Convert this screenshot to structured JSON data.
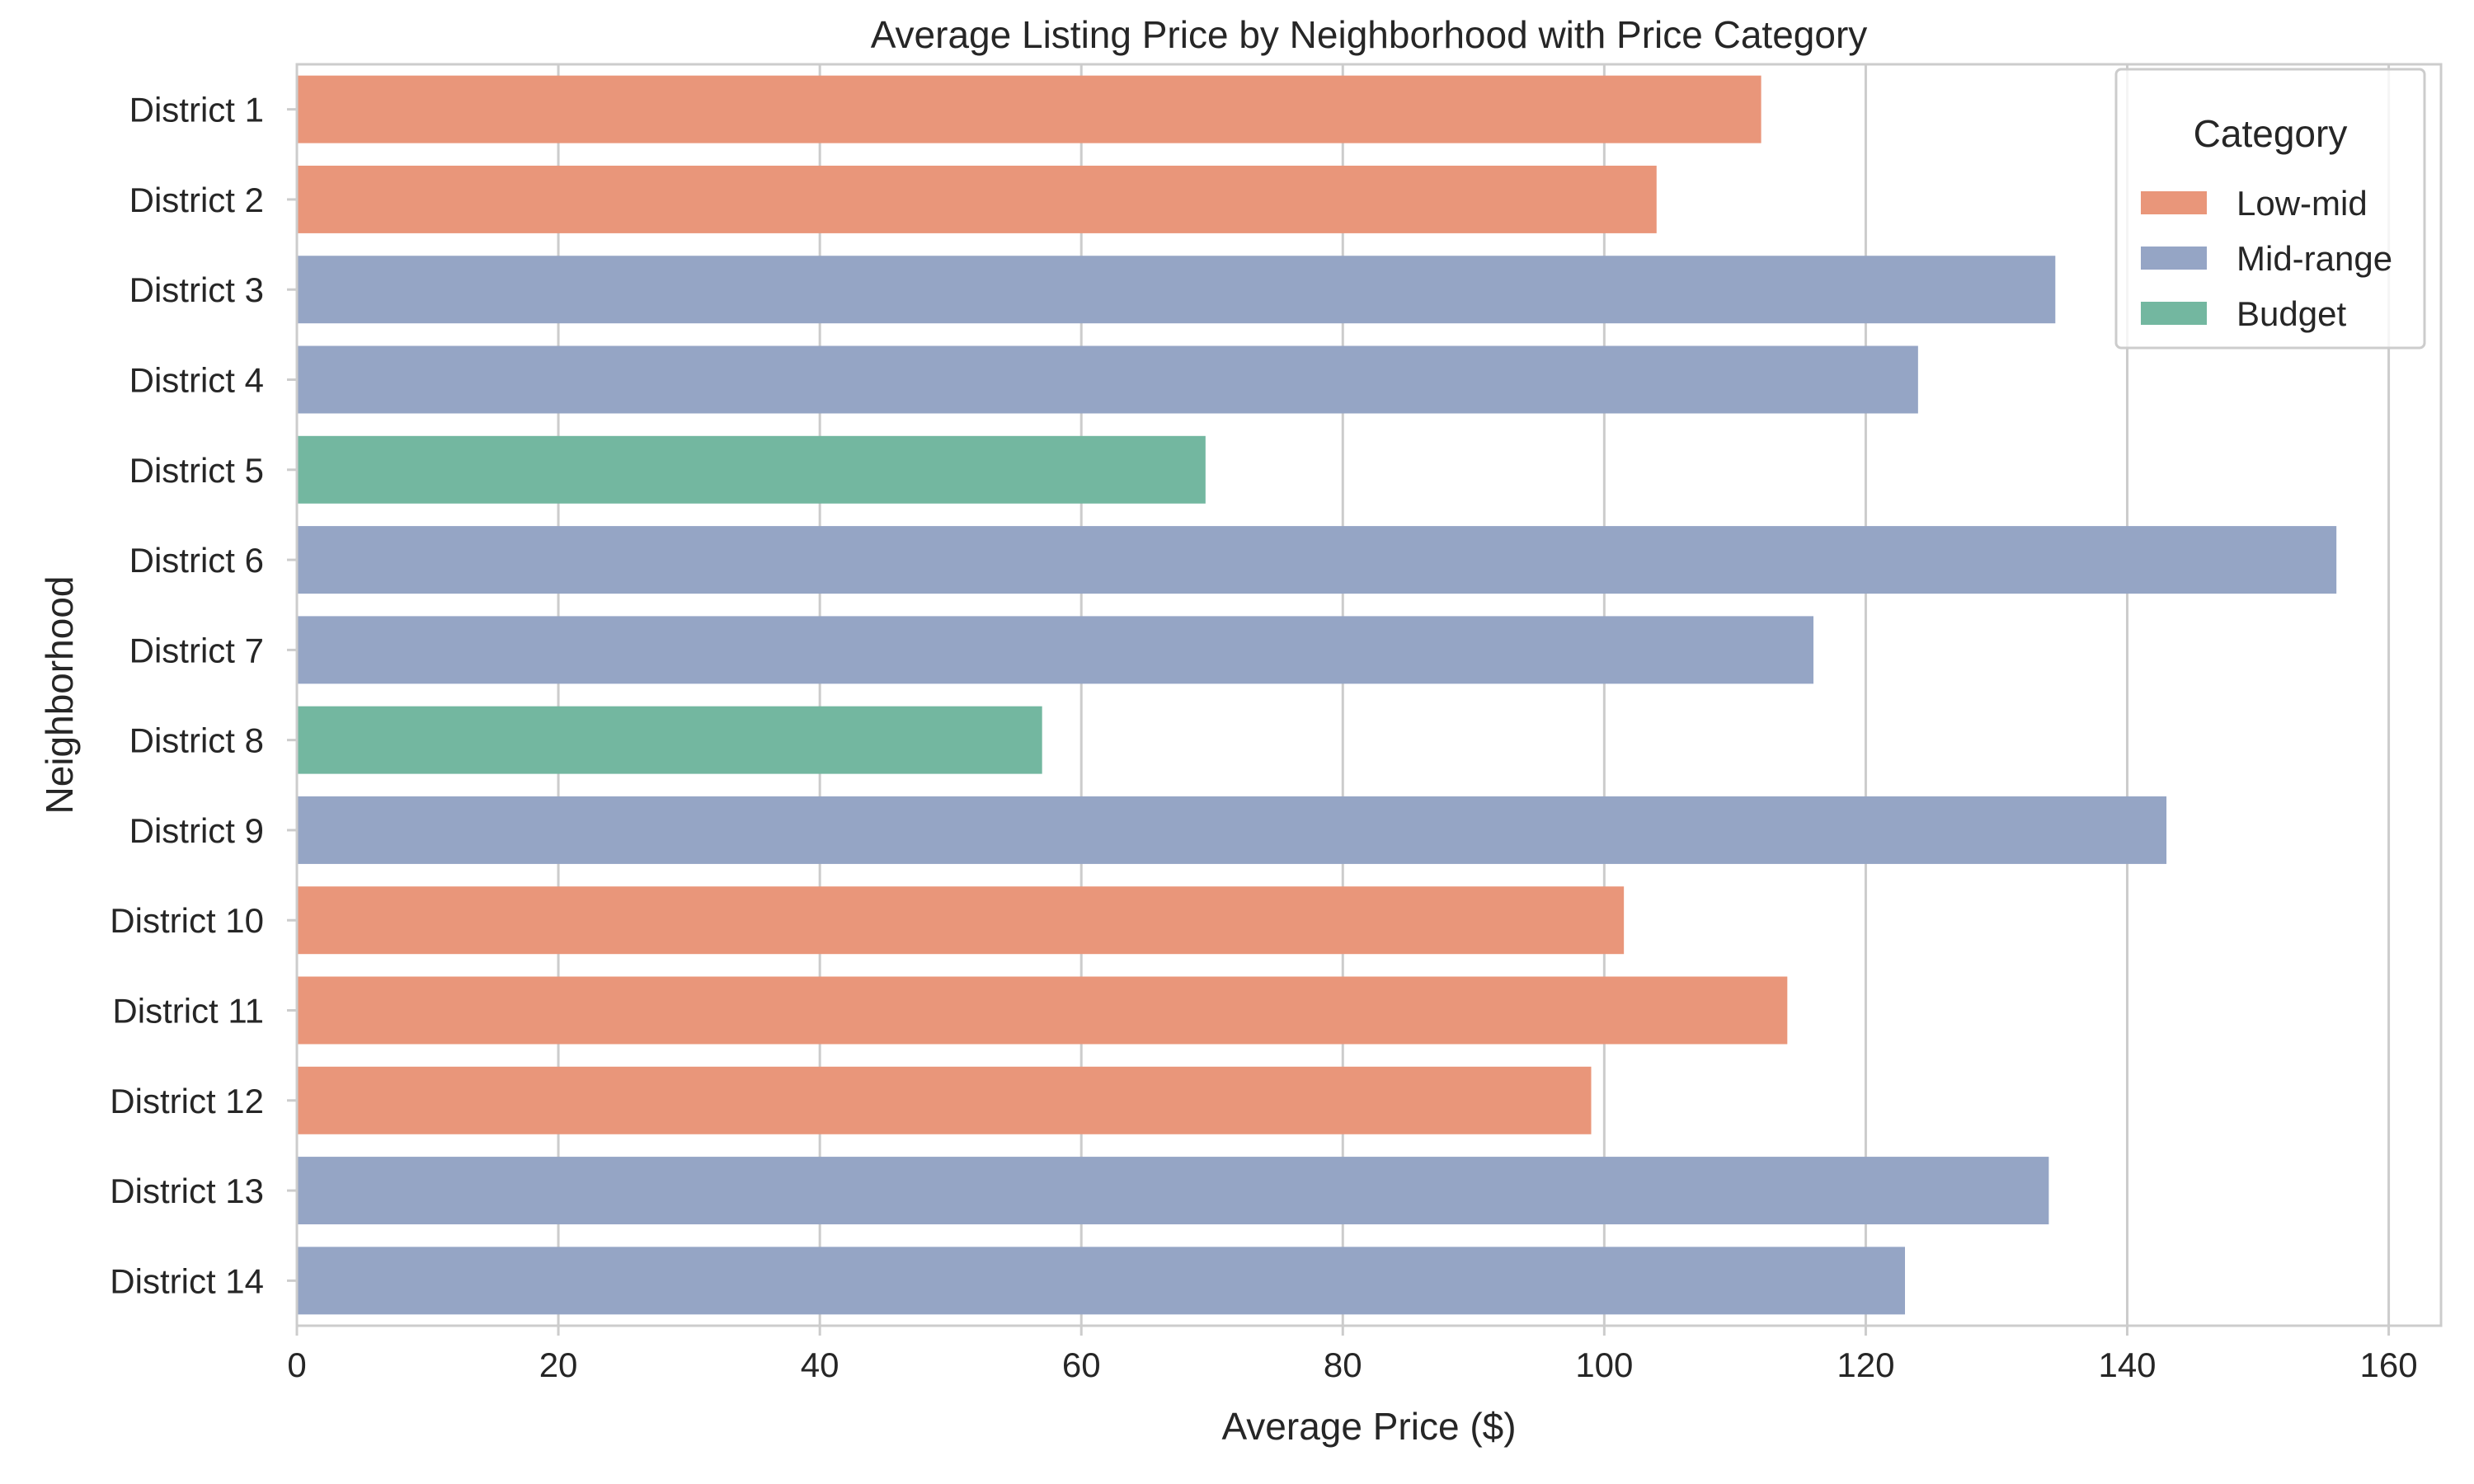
{
  "chart_data": {
    "type": "bar",
    "orientation": "horizontal",
    "title": "Average Listing Price by Neighborhood with Price Category",
    "xlabel": "Average Price ($)",
    "ylabel": "Neighborhood",
    "xlim": [
      0,
      164
    ],
    "xticks": [
      0,
      20,
      40,
      60,
      80,
      100,
      120,
      140,
      160
    ],
    "grid": true,
    "legend": {
      "title": "Category",
      "placement": "top-right",
      "entries": [
        {
          "label": "Low-mid",
          "color": "#e9967a"
        },
        {
          "label": "Mid-range",
          "color": "#95a5c5"
        },
        {
          "label": "Budget",
          "color": "#73b7a0"
        }
      ]
    },
    "categories": [
      "District 1",
      "District 2",
      "District 3",
      "District 4",
      "District 5",
      "District 6",
      "District 7",
      "District 8",
      "District 9",
      "District 10",
      "District 11",
      "District 12",
      "District 13",
      "District 14"
    ],
    "values": [
      112,
      104,
      134.5,
      124,
      69.5,
      156,
      116,
      57,
      143,
      101.5,
      114,
      99,
      134,
      123
    ],
    "bar_categories": [
      "Low-mid",
      "Low-mid",
      "Mid-range",
      "Mid-range",
      "Budget",
      "Mid-range",
      "Mid-range",
      "Budget",
      "Mid-range",
      "Low-mid",
      "Low-mid",
      "Low-mid",
      "Mid-range",
      "Mid-range"
    ]
  }
}
